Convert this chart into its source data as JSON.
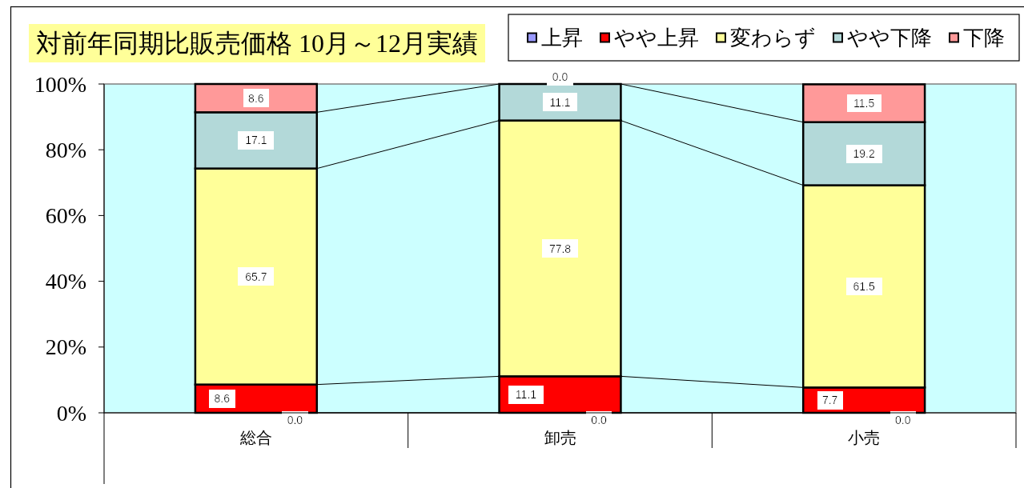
{
  "chart_data": {
    "type": "bar",
    "stacked": true,
    "title": "対前年同期比販売価格 10月～12月実績",
    "categories": [
      "総合",
      "卸売",
      "小売"
    ],
    "series": [
      {
        "name": "上昇",
        "color": "#9999ff",
        "values": [
          0.0,
          0.0,
          0.0
        ],
        "value_labels": [
          "0.0",
          "0.0",
          "0.0"
        ]
      },
      {
        "name": "やや上昇",
        "color": "#ff0000",
        "values": [
          8.6,
          11.1,
          7.7
        ],
        "value_labels": [
          "8.6",
          "11.1",
          "7.7"
        ]
      },
      {
        "name": "変わらず",
        "color": "#ffff99",
        "values": [
          65.7,
          77.8,
          61.5
        ],
        "value_labels": [
          "65.7",
          "77.8",
          "61.5"
        ]
      },
      {
        "name": "やや下降",
        "color": "#b3d9d9",
        "values": [
          17.1,
          11.1,
          19.2
        ],
        "value_labels": [
          "17.1",
          "11.1",
          "19.2"
        ]
      },
      {
        "name": "下降",
        "color": "#ff9999",
        "values": [
          8.6,
          0.0,
          11.5
        ],
        "value_labels": [
          "8.6",
          "0.0",
          "11.5"
        ]
      }
    ],
    "ylim": [
      0,
      100
    ],
    "yticks": [
      {
        "value": 0,
        "label": "0%"
      },
      {
        "value": 20,
        "label": "20%"
      },
      {
        "value": 40,
        "label": "40%"
      },
      {
        "value": 60,
        "label": "60%"
      },
      {
        "value": 80,
        "label": "80%"
      },
      {
        "value": 100,
        "label": "100%"
      }
    ],
    "legend": "top right"
  }
}
